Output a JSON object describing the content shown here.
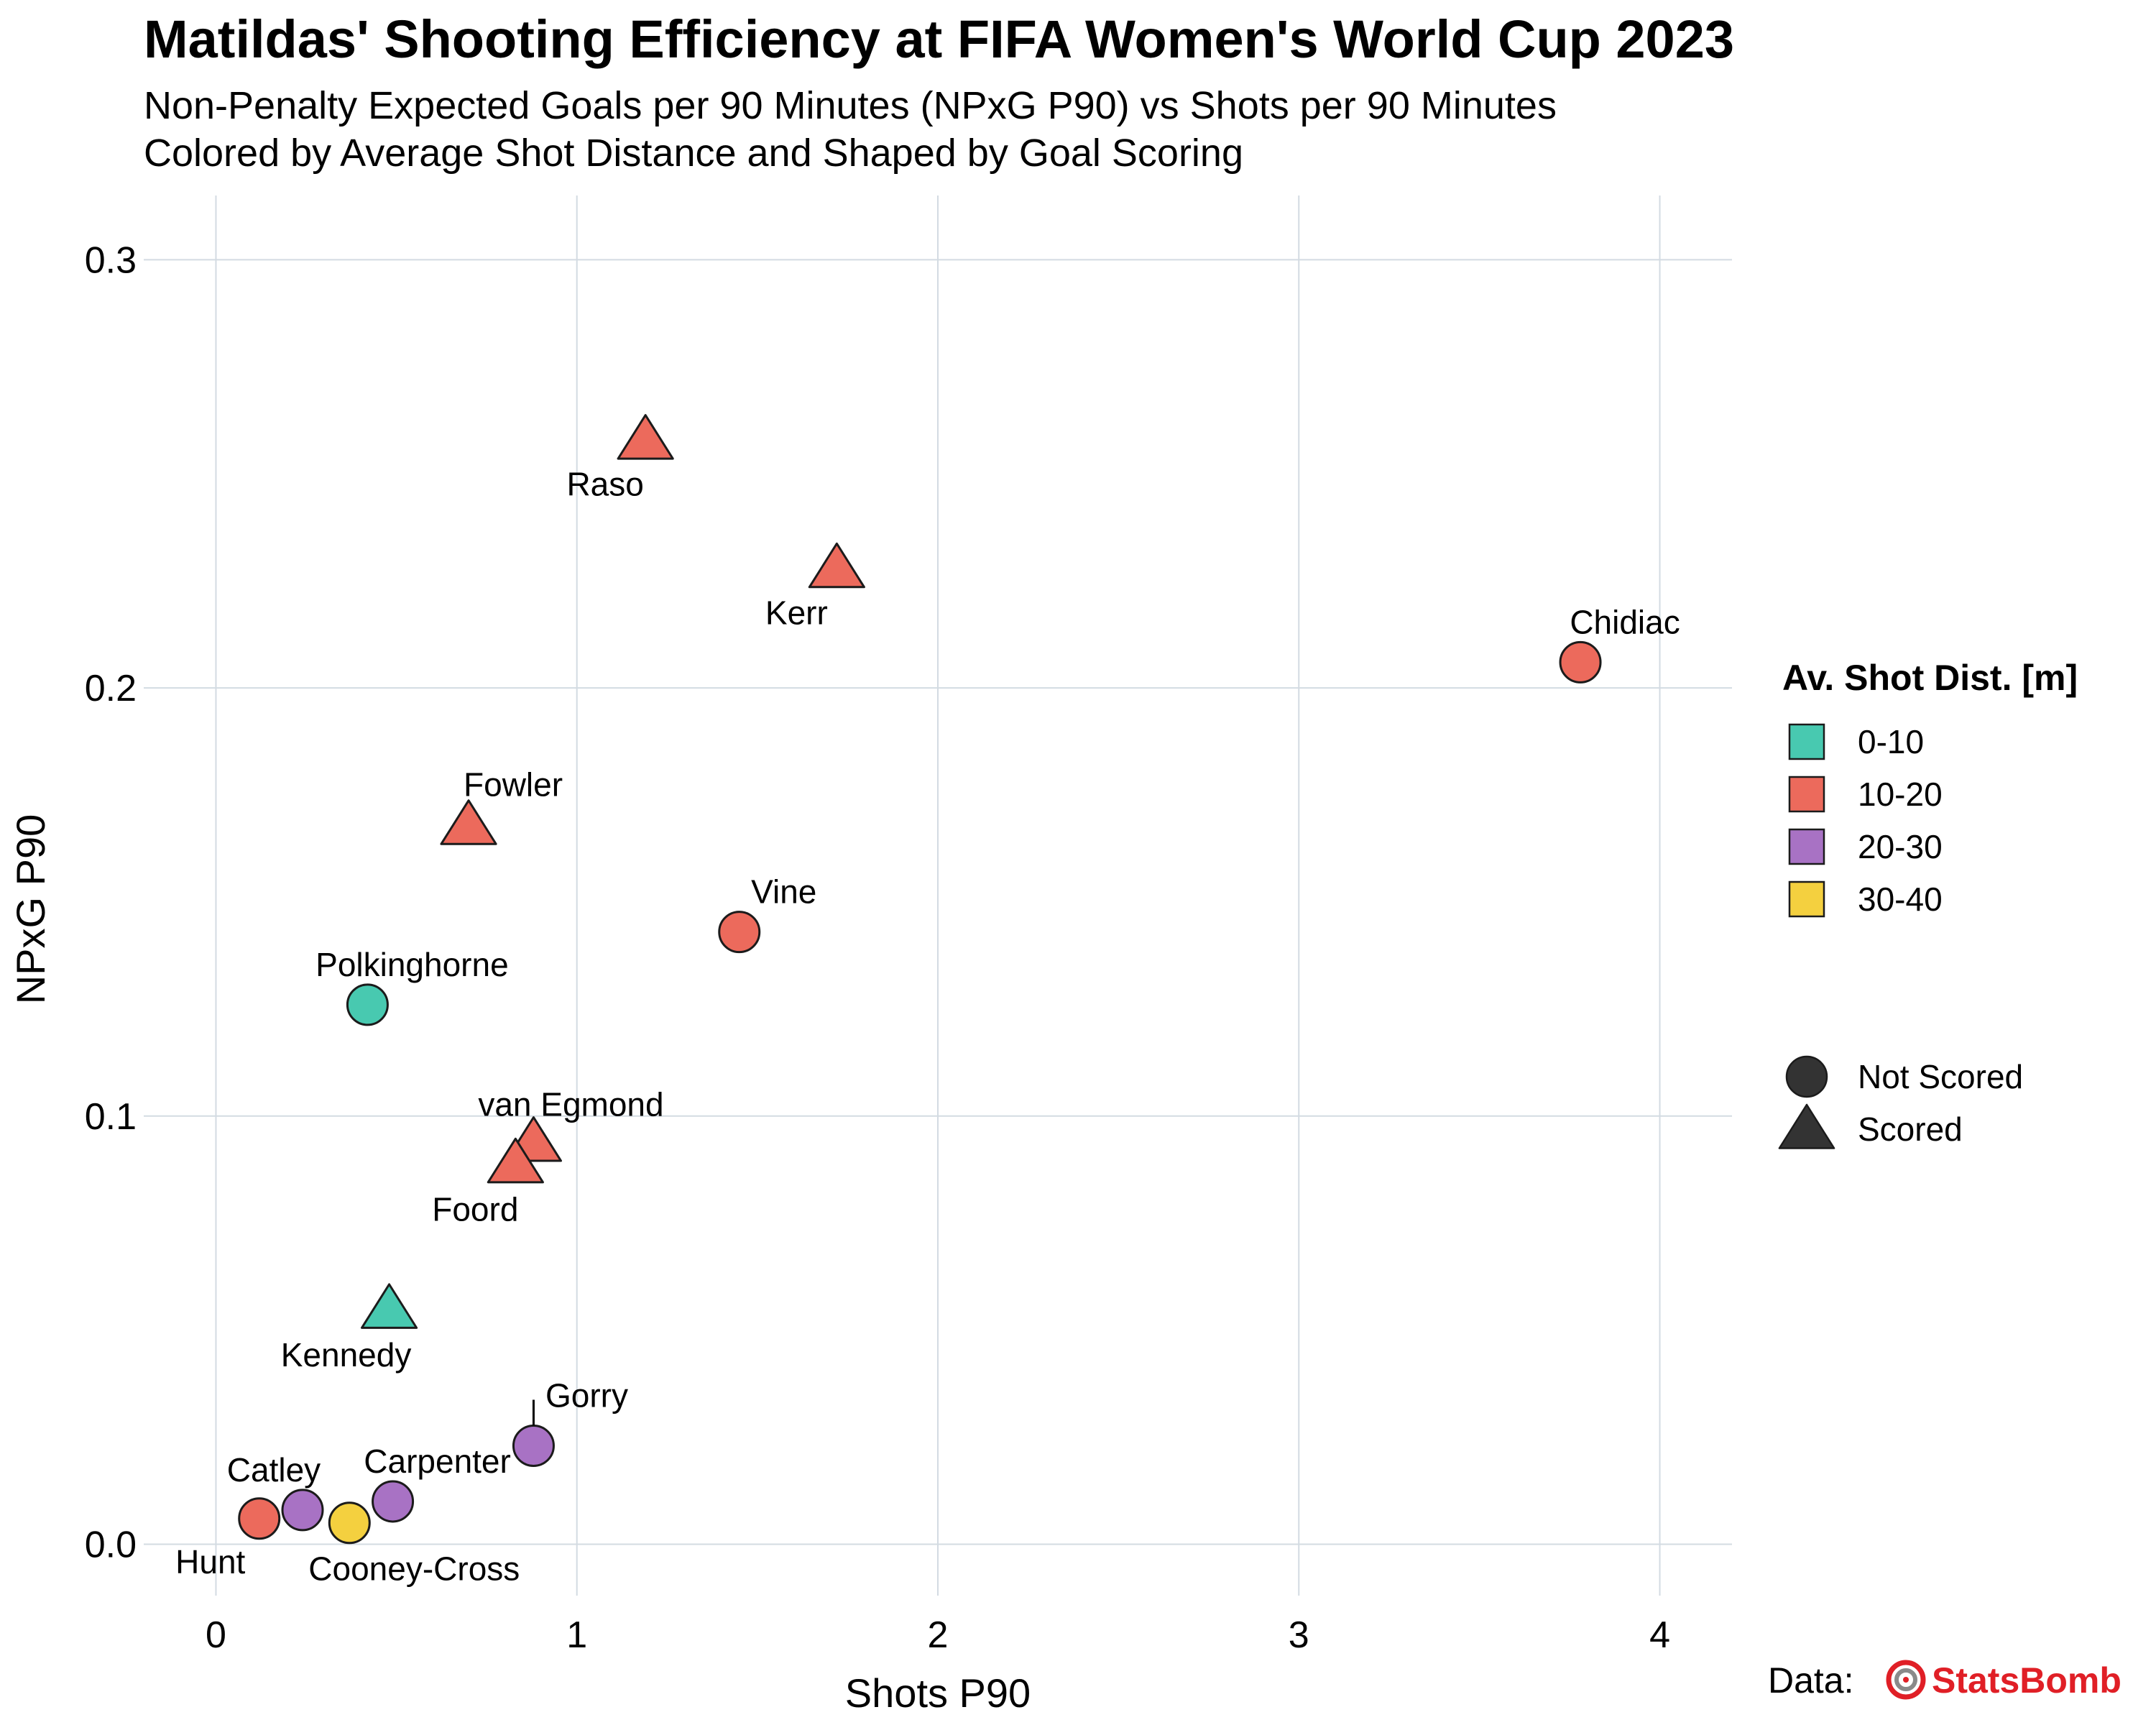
{
  "chart_data": {
    "type": "scatter",
    "title": "Matildas' Shooting Efficiency at FIFA Women's World Cup 2023",
    "subtitle": [
      "Non-Penalty Expected Goals per 90 Minutes (NPxG P90) vs Shots per 90 Minutes",
      "Colored by Average Shot Distance and Shaped by Goal Scoring"
    ],
    "xlabel": "Shots P90",
    "ylabel": "NPxG P90",
    "xlim": [
      -0.2,
      4.2
    ],
    "ylim": [
      -0.012,
      0.315
    ],
    "xticks": [
      "0",
      "1",
      "2",
      "3",
      "4"
    ],
    "yticks": [
      "0.0",
      "0.1",
      "0.2",
      "0.3"
    ],
    "grid": true,
    "legend_placement": "right",
    "color_legend": {
      "title": "Av. Shot Dist. [m]",
      "items": [
        {
          "label": "0-10",
          "color": "#48c9b0"
        },
        {
          "label": "10-20",
          "color": "#ec6a5c"
        },
        {
          "label": "20-30",
          "color": "#a872c4"
        },
        {
          "label": "30-40",
          "color": "#f4d03f"
        }
      ]
    },
    "shape_legend": {
      "items": [
        {
          "label": "Not Scored",
          "shape": "circle"
        },
        {
          "label": "Scored",
          "shape": "triangle"
        }
      ]
    },
    "points": [
      {
        "name": "Raso",
        "x": 1.19,
        "y": 0.258,
        "dist": "10-20",
        "shape": "triangle"
      },
      {
        "name": "Kerr",
        "x": 1.72,
        "y": 0.228,
        "dist": "10-20",
        "shape": "triangle"
      },
      {
        "name": "Chidiac",
        "x": 3.78,
        "y": 0.206,
        "dist": "10-20",
        "shape": "circle"
      },
      {
        "name": "Fowler",
        "x": 0.7,
        "y": 0.168,
        "dist": "10-20",
        "shape": "triangle"
      },
      {
        "name": "Vine",
        "x": 1.45,
        "y": 0.143,
        "dist": "10-20",
        "shape": "circle"
      },
      {
        "name": "Polkinghorne",
        "x": 0.42,
        "y": 0.126,
        "dist": "0-10",
        "shape": "circle"
      },
      {
        "name": "van Egmond",
        "x": 0.88,
        "y": 0.094,
        "dist": "10-20",
        "shape": "triangle"
      },
      {
        "name": "Foord",
        "x": 0.83,
        "y": 0.089,
        "dist": "10-20",
        "shape": "triangle"
      },
      {
        "name": "Kennedy",
        "x": 0.48,
        "y": 0.055,
        "dist": "0-10",
        "shape": "triangle"
      },
      {
        "name": "Gorry",
        "x": 0.88,
        "y": 0.023,
        "dist": "20-30",
        "shape": "circle"
      },
      {
        "name": "Carpenter",
        "x": 0.49,
        "y": 0.01,
        "dist": "20-30",
        "shape": "circle"
      },
      {
        "name": "Catley",
        "x": 0.24,
        "y": 0.008,
        "dist": "20-30",
        "shape": "circle"
      },
      {
        "name": "Hunt",
        "x": 0.12,
        "y": 0.006,
        "dist": "10-20",
        "shape": "circle"
      },
      {
        "name": "Cooney-Cross",
        "x": 0.37,
        "y": 0.005,
        "dist": "30-40",
        "shape": "circle"
      }
    ]
  },
  "credit": {
    "prefix": "Data:",
    "brand": "StatsBomb",
    "brand_color": "#e01f26"
  }
}
